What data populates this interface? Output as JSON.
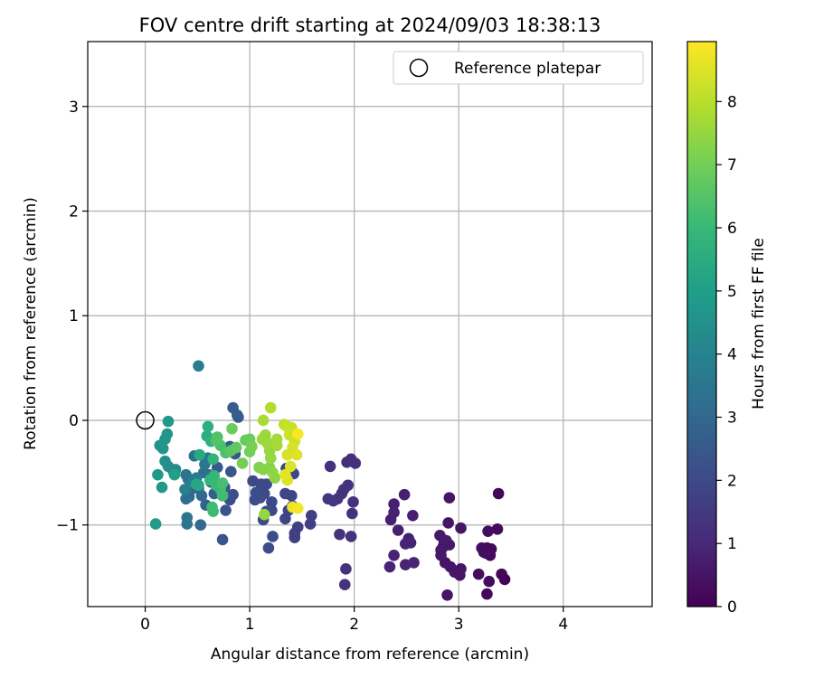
{
  "chart_data": {
    "type": "scatter",
    "title": "FOV centre drift starting at 2024/09/03 18:38:13",
    "xlabel": "Angular distance from reference (arcmin)",
    "ylabel": "Rotation from reference (arcmin)",
    "xlim": [
      -0.55,
      4.85
    ],
    "ylim": [
      -1.78,
      3.62
    ],
    "xticks": [
      "0",
      "1",
      "2",
      "3",
      "4"
    ],
    "yticks": [
      "−1",
      "0",
      "1",
      "2",
      "3"
    ],
    "grid": true,
    "legend": {
      "placement": "top-right",
      "entries": [
        "Reference platepar"
      ]
    },
    "reference_point": {
      "x": 0,
      "y": 0
    },
    "colorbar": {
      "label": "Hours from first FF file",
      "range": [
        0,
        8.95
      ],
      "ticks": [
        "0",
        "1",
        "2",
        "3",
        "4",
        "5",
        "6",
        "7",
        "8"
      ],
      "colormap": "viridis",
      "colors": [
        "#440154",
        "#482878",
        "#3e4989",
        "#31688e",
        "#26828e",
        "#1f9e89",
        "#35b779",
        "#6ece58",
        "#b5de2b",
        "#fde725"
      ]
    },
    "points": [
      {
        "x": 3.38,
        "y": -0.7,
        "t": 0.2
      },
      {
        "x": 3.37,
        "y": -1.04,
        "t": 0.2
      },
      {
        "x": 3.41,
        "y": -1.47,
        "t": 0.2
      },
      {
        "x": 3.44,
        "y": -1.52,
        "t": 0.1
      },
      {
        "x": 3.27,
        "y": -1.66,
        "t": 0.2
      },
      {
        "x": 3.29,
        "y": -1.54,
        "t": 0.3
      },
      {
        "x": 3.24,
        "y": -1.26,
        "t": 0.3
      },
      {
        "x": 3.27,
        "y": -1.22,
        "t": 0.2
      },
      {
        "x": 3.22,
        "y": -1.22,
        "t": 0.3
      },
      {
        "x": 3.3,
        "y": -1.29,
        "t": 0.2
      },
      {
        "x": 3.28,
        "y": -1.06,
        "t": 0.3
      },
      {
        "x": 3.19,
        "y": -1.47,
        "t": 0.3
      },
      {
        "x": 3.31,
        "y": -1.23,
        "t": 0.2
      },
      {
        "x": 3.26,
        "y": -1.27,
        "t": 0.3
      },
      {
        "x": 2.91,
        "y": -0.74,
        "t": 0.5
      },
      {
        "x": 2.9,
        "y": -0.98,
        "t": 0.5
      },
      {
        "x": 3.02,
        "y": -1.03,
        "t": 0.5
      },
      {
        "x": 2.89,
        "y": -1.67,
        "t": 0.5
      },
      {
        "x": 2.96,
        "y": -1.45,
        "t": 0.5
      },
      {
        "x": 3.01,
        "y": -1.48,
        "t": 0.5
      },
      {
        "x": 2.87,
        "y": -1.36,
        "t": 0.5
      },
      {
        "x": 2.83,
        "y": -1.29,
        "t": 0.6
      },
      {
        "x": 2.86,
        "y": -1.17,
        "t": 0.6
      },
      {
        "x": 2.82,
        "y": -1.1,
        "t": 0.6
      },
      {
        "x": 2.91,
        "y": -1.19,
        "t": 0.6
      },
      {
        "x": 2.85,
        "y": -1.21,
        "t": 0.6
      },
      {
        "x": 3.02,
        "y": -1.42,
        "t": 0.5
      },
      {
        "x": 2.92,
        "y": -1.4,
        "t": 0.5
      },
      {
        "x": 2.83,
        "y": -1.24,
        "t": 0.6
      },
      {
        "x": 2.88,
        "y": -1.15,
        "t": 0.6
      },
      {
        "x": 2.48,
        "y": -0.71,
        "t": 0.8
      },
      {
        "x": 2.56,
        "y": -0.91,
        "t": 0.8
      },
      {
        "x": 2.38,
        "y": -0.8,
        "t": 0.8
      },
      {
        "x": 2.38,
        "y": -0.88,
        "t": 0.8
      },
      {
        "x": 2.35,
        "y": -0.95,
        "t": 0.8
      },
      {
        "x": 2.42,
        "y": -1.05,
        "t": 0.8
      },
      {
        "x": 2.52,
        "y": -1.13,
        "t": 0.8
      },
      {
        "x": 2.54,
        "y": -1.17,
        "t": 0.9
      },
      {
        "x": 2.49,
        "y": -1.18,
        "t": 0.9
      },
      {
        "x": 2.38,
        "y": -1.29,
        "t": 0.9
      },
      {
        "x": 2.34,
        "y": -1.4,
        "t": 0.9
      },
      {
        "x": 2.49,
        "y": -1.38,
        "t": 0.9
      },
      {
        "x": 2.57,
        "y": -1.36,
        "t": 0.9
      },
      {
        "x": 1.93,
        "y": -0.4,
        "t": 1.2
      },
      {
        "x": 1.97,
        "y": -0.37,
        "t": 1.2
      },
      {
        "x": 2.01,
        "y": -0.41,
        "t": 1.2
      },
      {
        "x": 1.77,
        "y": -0.44,
        "t": 1.2
      },
      {
        "x": 1.94,
        "y": -0.62,
        "t": 1.3
      },
      {
        "x": 1.9,
        "y": -0.66,
        "t": 1.3
      },
      {
        "x": 1.88,
        "y": -0.7,
        "t": 1.3
      },
      {
        "x": 1.84,
        "y": -0.75,
        "t": 1.3
      },
      {
        "x": 1.75,
        "y": -0.75,
        "t": 1.4
      },
      {
        "x": 1.8,
        "y": -0.77,
        "t": 1.4
      },
      {
        "x": 1.99,
        "y": -0.78,
        "t": 1.3
      },
      {
        "x": 1.98,
        "y": -0.89,
        "t": 1.3
      },
      {
        "x": 1.86,
        "y": -1.09,
        "t": 1.3
      },
      {
        "x": 1.97,
        "y": -1.11,
        "t": 1.3
      },
      {
        "x": 1.92,
        "y": -1.42,
        "t": 1.3
      },
      {
        "x": 1.91,
        "y": -1.57,
        "t": 1.3
      },
      {
        "x": 1.59,
        "y": -0.91,
        "t": 1.7
      },
      {
        "x": 1.58,
        "y": -0.99,
        "t": 1.7
      },
      {
        "x": 1.46,
        "y": -1.02,
        "t": 1.7
      },
      {
        "x": 1.43,
        "y": -1.08,
        "t": 1.7
      },
      {
        "x": 1.43,
        "y": -1.12,
        "t": 1.7
      },
      {
        "x": 1.34,
        "y": -0.94,
        "t": 1.8
      },
      {
        "x": 1.37,
        "y": -0.86,
        "t": 1.8
      },
      {
        "x": 1.41,
        "y": -0.82,
        "t": 1.8
      },
      {
        "x": 1.34,
        "y": -0.7,
        "t": 1.9
      },
      {
        "x": 1.4,
        "y": -0.72,
        "t": 1.9
      },
      {
        "x": 1.42,
        "y": -0.51,
        "t": 1.9
      },
      {
        "x": 1.35,
        "y": -0.46,
        "t": 1.9
      },
      {
        "x": 1.39,
        "y": -0.45,
        "t": 1.9
      },
      {
        "x": 1.21,
        "y": -0.78,
        "t": 2.0
      },
      {
        "x": 1.14,
        "y": -0.7,
        "t": 2.0
      },
      {
        "x": 1.16,
        "y": -0.61,
        "t": 2.0
      },
      {
        "x": 1.03,
        "y": -0.58,
        "t": 2.0
      },
      {
        "x": 1.11,
        "y": -0.61,
        "t": 2.0
      },
      {
        "x": 1.16,
        "y": -0.87,
        "t": 2.0
      },
      {
        "x": 1.13,
        "y": -0.95,
        "t": 2.0
      },
      {
        "x": 1.21,
        "y": -0.86,
        "t": 2.0
      },
      {
        "x": 1.1,
        "y": -0.74,
        "t": 2.1
      },
      {
        "x": 1.06,
        "y": -0.69,
        "t": 2.1
      },
      {
        "x": 1.05,
        "y": -0.76,
        "t": 2.1
      },
      {
        "x": 1.22,
        "y": -1.11,
        "t": 2.1
      },
      {
        "x": 1.18,
        "y": -1.22,
        "t": 2.1
      },
      {
        "x": 0.84,
        "y": -0.71,
        "t": 2.2
      },
      {
        "x": 0.81,
        "y": -0.76,
        "t": 2.2
      },
      {
        "x": 0.76,
        "y": -0.64,
        "t": 2.2
      },
      {
        "x": 0.74,
        "y": -0.72,
        "t": 2.2
      },
      {
        "x": 0.77,
        "y": -0.86,
        "t": 2.3
      },
      {
        "x": 0.74,
        "y": -1.14,
        "t": 2.3
      },
      {
        "x": 0.82,
        "y": -0.49,
        "t": 2.4
      },
      {
        "x": 0.86,
        "y": -0.32,
        "t": 2.4
      },
      {
        "x": 0.81,
        "y": -0.25,
        "t": 2.5
      },
      {
        "x": 0.84,
        "y": 0.12,
        "t": 2.6
      },
      {
        "x": 0.89,
        "y": 0.03,
        "t": 2.6
      },
      {
        "x": 0.88,
        "y": 0.05,
        "t": 2.6
      },
      {
        "x": 0.69,
        "y": -0.45,
        "t": 2.6
      },
      {
        "x": 0.63,
        "y": -0.59,
        "t": 2.7
      },
      {
        "x": 0.66,
        "y": -0.7,
        "t": 2.7
      },
      {
        "x": 0.58,
        "y": -0.81,
        "t": 2.8
      },
      {
        "x": 0.53,
        "y": -1.0,
        "t": 3.0
      },
      {
        "x": 0.54,
        "y": -0.72,
        "t": 3.0
      },
      {
        "x": 0.51,
        "y": -0.65,
        "t": 3.0
      },
      {
        "x": 0.46,
        "y": -0.65,
        "t": 3.1
      },
      {
        "x": 0.42,
        "y": -0.73,
        "t": 3.1
      },
      {
        "x": 0.39,
        "y": -0.75,
        "t": 3.2
      },
      {
        "x": 0.47,
        "y": -0.34,
        "t": 3.3
      },
      {
        "x": 0.52,
        "y": -0.33,
        "t": 3.3
      },
      {
        "x": 0.56,
        "y": -0.5,
        "t": 3.3
      },
      {
        "x": 0.61,
        "y": -0.52,
        "t": 3.3
      },
      {
        "x": 0.39,
        "y": -0.52,
        "t": 3.4
      },
      {
        "x": 0.41,
        "y": -0.56,
        "t": 3.4
      },
      {
        "x": 0.4,
        "y": -0.93,
        "t": 3.5
      },
      {
        "x": 0.4,
        "y": -0.99,
        "t": 3.5
      },
      {
        "x": 0.51,
        "y": 0.52,
        "t": 3.8
      },
      {
        "x": 0.45,
        "y": -0.59,
        "t": 3.9
      },
      {
        "x": 0.38,
        "y": -0.66,
        "t": 3.9
      },
      {
        "x": 0.49,
        "y": -0.55,
        "t": 3.7
      },
      {
        "x": 0.6,
        "y": -0.36,
        "t": 3.6
      },
      {
        "x": 0.57,
        "y": -0.42,
        "t": 3.6
      },
      {
        "x": 0.29,
        "y": -0.47,
        "t": 4.2
      },
      {
        "x": 0.27,
        "y": -0.49,
        "t": 4.3
      },
      {
        "x": 0.22,
        "y": -0.44,
        "t": 4.4
      },
      {
        "x": 0.19,
        "y": -0.39,
        "t": 4.5
      },
      {
        "x": 0.17,
        "y": -0.27,
        "t": 4.6
      },
      {
        "x": 0.14,
        "y": -0.24,
        "t": 4.6
      },
      {
        "x": 0.19,
        "y": -0.18,
        "t": 4.7
      },
      {
        "x": 0.21,
        "y": -0.13,
        "t": 4.7
      },
      {
        "x": 0.22,
        "y": -0.01,
        "t": 4.8
      },
      {
        "x": 0.12,
        "y": -0.52,
        "t": 4.8
      },
      {
        "x": 0.16,
        "y": -0.64,
        "t": 4.8
      },
      {
        "x": 0.1,
        "y": -0.99,
        "t": 4.9
      },
      {
        "x": 0.28,
        "y": -0.52,
        "t": 5.1
      },
      {
        "x": 0.51,
        "y": -0.62,
        "t": 5.3
      },
      {
        "x": 0.49,
        "y": -0.61,
        "t": 5.3
      },
      {
        "x": 0.52,
        "y": -0.33,
        "t": 5.4
      },
      {
        "x": 0.6,
        "y": -0.06,
        "t": 5.6
      },
      {
        "x": 0.59,
        "y": -0.15,
        "t": 5.6
      },
      {
        "x": 0.63,
        "y": -0.2,
        "t": 5.7
      },
      {
        "x": 0.65,
        "y": -0.37,
        "t": 5.8
      },
      {
        "x": 0.66,
        "y": -0.53,
        "t": 5.9
      },
      {
        "x": 0.62,
        "y": -0.57,
        "t": 5.9
      },
      {
        "x": 0.68,
        "y": -0.62,
        "t": 6.0
      },
      {
        "x": 0.72,
        "y": -0.66,
        "t": 6.0
      },
      {
        "x": 0.65,
        "y": -0.87,
        "t": 6.1
      },
      {
        "x": 0.64,
        "y": -0.83,
        "t": 6.1
      },
      {
        "x": 0.74,
        "y": -0.72,
        "t": 6.2
      },
      {
        "x": 0.74,
        "y": -0.6,
        "t": 6.3
      },
      {
        "x": 0.72,
        "y": -0.24,
        "t": 6.3
      },
      {
        "x": 0.77,
        "y": -0.31,
        "t": 6.4
      },
      {
        "x": 0.69,
        "y": -0.16,
        "t": 6.4
      },
      {
        "x": 0.68,
        "y": -0.19,
        "t": 6.5
      },
      {
        "x": 0.82,
        "y": -0.29,
        "t": 6.6
      },
      {
        "x": 0.87,
        "y": -0.26,
        "t": 6.7
      },
      {
        "x": 0.96,
        "y": -0.19,
        "t": 6.8
      },
      {
        "x": 1.0,
        "y": -0.18,
        "t": 6.9
      },
      {
        "x": 0.83,
        "y": -0.08,
        "t": 6.9
      },
      {
        "x": 0.93,
        "y": -0.41,
        "t": 7.0
      },
      {
        "x": 1.0,
        "y": -0.3,
        "t": 7.0
      },
      {
        "x": 1.02,
        "y": -0.25,
        "t": 7.1
      },
      {
        "x": 1.09,
        "y": -0.45,
        "t": 7.2
      },
      {
        "x": 1.13,
        "y": -0.47,
        "t": 7.3
      },
      {
        "x": 1.19,
        "y": -0.45,
        "t": 7.3
      },
      {
        "x": 1.22,
        "y": -0.5,
        "t": 7.4
      },
      {
        "x": 1.24,
        "y": -0.55,
        "t": 7.4
      },
      {
        "x": 1.2,
        "y": -0.36,
        "t": 7.5
      },
      {
        "x": 1.19,
        "y": -0.29,
        "t": 7.5
      },
      {
        "x": 1.12,
        "y": -0.18,
        "t": 7.6
      },
      {
        "x": 1.15,
        "y": -0.14,
        "t": 7.6
      },
      {
        "x": 1.17,
        "y": -0.22,
        "t": 7.6
      },
      {
        "x": 1.26,
        "y": -0.24,
        "t": 7.7
      },
      {
        "x": 1.26,
        "y": -0.18,
        "t": 7.7
      },
      {
        "x": 1.13,
        "y": -0.0,
        "t": 7.8
      },
      {
        "x": 1.2,
        "y": 0.12,
        "t": 7.9
      },
      {
        "x": 1.14,
        "y": -0.9,
        "t": 7.5
      },
      {
        "x": 1.33,
        "y": -0.04,
        "t": 8.1
      },
      {
        "x": 1.36,
        "y": -0.06,
        "t": 8.2
      },
      {
        "x": 1.4,
        "y": -0.07,
        "t": 8.2
      },
      {
        "x": 1.38,
        "y": -0.14,
        "t": 8.3
      },
      {
        "x": 1.43,
        "y": -0.2,
        "t": 8.3
      },
      {
        "x": 1.41,
        "y": -0.26,
        "t": 8.4
      },
      {
        "x": 1.36,
        "y": -0.33,
        "t": 8.4
      },
      {
        "x": 1.45,
        "y": -0.33,
        "t": 8.5
      },
      {
        "x": 1.39,
        "y": -0.44,
        "t": 8.5
      },
      {
        "x": 1.36,
        "y": -0.57,
        "t": 8.5
      },
      {
        "x": 1.41,
        "y": -0.83,
        "t": 8.7
      },
      {
        "x": 1.46,
        "y": -0.84,
        "t": 8.8
      },
      {
        "x": 1.46,
        "y": -0.13,
        "t": 8.9
      },
      {
        "x": 1.34,
        "y": -0.52,
        "t": 8.6
      }
    ]
  }
}
